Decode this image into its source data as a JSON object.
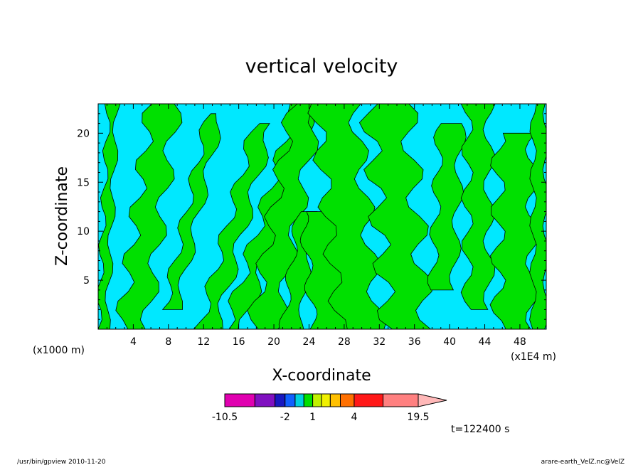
{
  "chart_data": {
    "type": "heatmap",
    "title": "vertical velocity",
    "xlabel": "X-coordinate",
    "ylabel": "Z-coordinate",
    "x_unit_left": "(x1000 m)",
    "x_unit_right": "(x1E4 m)",
    "xlim": [
      0,
      51
    ],
    "ylim": [
      0,
      23
    ],
    "x_ticks": [
      4,
      8,
      12,
      16,
      20,
      24,
      28,
      32,
      36,
      40,
      44,
      48
    ],
    "y_ticks": [
      5,
      10,
      15,
      20
    ],
    "colorbar": {
      "levels": [
        -10.5,
        -6,
        -3,
        -2,
        -1.5,
        -1,
        1,
        1.5,
        2,
        3,
        4,
        8,
        13,
        19.5
      ],
      "colors": [
        "#e000b0",
        "#8010c0",
        "#1818c0",
        "#1060ff",
        "#00d0e0",
        "#00e000",
        "#c0f000",
        "#f0f000",
        "#ffc000",
        "#ff7000",
        "#ff1818",
        "#ff8080",
        "#ffb8b8"
      ],
      "tick_labels": [
        {
          "value": -10.5,
          "text": "-10.5"
        },
        {
          "value": -2,
          "text": "-2"
        },
        {
          "value": 1,
          "text": "1"
        },
        {
          "value": 4,
          "text": "4"
        },
        {
          "value": 19.5,
          "text": "19.5"
        }
      ],
      "extend": "max"
    },
    "field_colors": {
      "negative": "#00e8ff",
      "positive": "#00e000"
    },
    "positive_bands": [
      {
        "x0": 0.0,
        "x1": 1.0,
        "z0": 0,
        "z1": 23,
        "tilt": 0.05,
        "wobble": 0.4
      },
      {
        "x0": 2.5,
        "x1": 5.5,
        "z0": 0,
        "z1": 23,
        "tilt": 0.15,
        "wobble": 0.9
      },
      {
        "x0": 7.5,
        "x1": 9.0,
        "z0": 2,
        "z1": 22,
        "tilt": 0.25,
        "wobble": 0.6
      },
      {
        "x0": 11.5,
        "x1": 13.5,
        "z0": 0,
        "z1": 21,
        "tilt": 0.3,
        "wobble": 0.7
      },
      {
        "x0": 14.5,
        "x1": 16.5,
        "z0": 0,
        "z1": 23,
        "tilt": 0.35,
        "wobble": 0.8
      },
      {
        "x0": 17.5,
        "x1": 20.5,
        "z0": 0,
        "z1": 23,
        "tilt": 0.2,
        "wobble": 0.9
      },
      {
        "x0": 21.0,
        "x1": 23.0,
        "z0": 0,
        "z1": 12,
        "tilt": 0.15,
        "wobble": 0.5
      },
      {
        "x0": 24.5,
        "x1": 29.5,
        "z0": 0,
        "z1": 12,
        "tilt": -0.1,
        "wobble": 0.6
      },
      {
        "x0": 27.5,
        "x1": 32.0,
        "z0": 0,
        "z1": 23,
        "tilt": -0.12,
        "wobble": 1.0
      },
      {
        "x0": 33.0,
        "x1": 37.5,
        "z0": 0,
        "z1": 23,
        "tilt": -0.1,
        "wobble": 1.2
      },
      {
        "x0": 38.0,
        "x1": 40.5,
        "z0": 4,
        "z1": 21,
        "tilt": 0.05,
        "wobble": 0.6
      },
      {
        "x0": 42.0,
        "x1": 44.5,
        "z0": 2,
        "z1": 23,
        "tilt": 0.0,
        "wobble": 0.7
      },
      {
        "x0": 45.5,
        "x1": 49.5,
        "z0": 0,
        "z1": 20,
        "tilt": 0.0,
        "wobble": 0.9
      },
      {
        "x0": 49.5,
        "x1": 51.0,
        "z0": 0,
        "z1": 23,
        "tilt": 0.0,
        "wobble": 0.4
      }
    ],
    "time_label": "t=122400 s"
  },
  "footer": {
    "left": "/usr/bin/gpview  2010-11-20",
    "right": "arare-earth_VelZ.nc@VelZ"
  }
}
